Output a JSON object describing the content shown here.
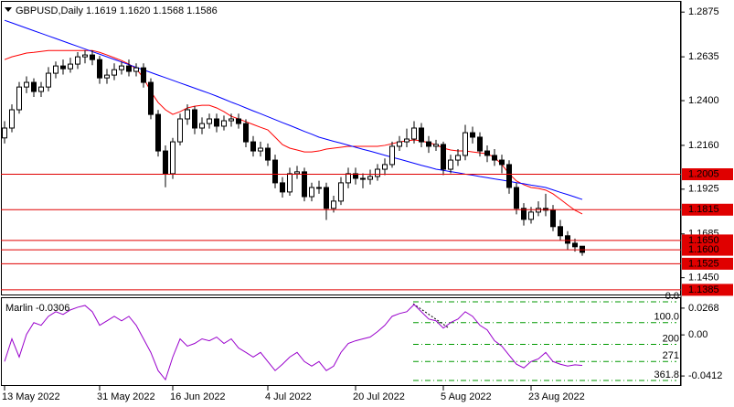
{
  "chart_data": [
    {
      "type": "candlestick",
      "title": "GBPUSD,Daily  1.1619 1.1620 1.1568 1.1586",
      "categories": [
        "13 May 2022",
        null,
        null,
        null,
        null,
        null,
        null,
        null,
        null,
        null,
        null,
        null,
        null,
        "31 May 2022",
        null,
        null,
        null,
        null,
        null,
        null,
        null,
        null,
        null,
        "16 Jun 2022",
        null,
        null,
        null,
        null,
        null,
        null,
        null,
        null,
        null,
        null,
        null,
        null,
        "4 Jul 2022",
        null,
        null,
        null,
        null,
        null,
        null,
        null,
        null,
        null,
        null,
        null,
        "20 Jul 2022",
        null,
        null,
        null,
        null,
        null,
        null,
        null,
        null,
        null,
        null,
        null,
        "5 Aug 2022",
        null,
        null,
        null,
        null,
        null,
        null,
        null,
        null,
        null,
        null,
        null,
        "23 Aug 2022",
        null,
        null,
        null,
        null,
        null,
        null,
        null
      ],
      "open": [
        1.22,
        1.2253,
        1.2351,
        1.2473,
        1.2498,
        1.2449,
        1.2473,
        1.2547,
        1.2586,
        1.2571,
        1.2596,
        1.2635,
        1.2645,
        1.262,
        1.2522,
        1.2537,
        1.2566,
        1.2586,
        1.2557,
        1.2576,
        1.2498,
        1.2326,
        1.213,
        1.2008,
        1.2179,
        1.2302,
        1.2351,
        1.2253,
        1.2277,
        1.2302,
        1.2263,
        1.2292,
        1.2302,
        1.2277,
        1.2179,
        1.213,
        1.2145,
        1.2081,
        1.1959,
        1.191,
        1.2008,
        1.2018,
        1.1885,
        1.1934,
        1.1934,
        1.1822,
        1.1861,
        1.1959,
        1.2008,
        1.1983,
        1.1978,
        1.1993,
        1.2032,
        1.2057,
        1.2155,
        1.2179,
        1.2194,
        1.2253,
        1.2179,
        1.2155,
        1.2165,
        1.2032,
        1.2081,
        1.2106,
        1.2228,
        1.2204,
        1.213,
        1.2106,
        1.2081,
        1.2057,
        1.1934,
        1.1822,
        1.1763,
        1.1802,
        1.1822,
        1.1812,
        1.1724,
        1.1675,
        1.1635,
        1.1619
      ],
      "high": [
        1.229,
        1.238,
        1.25,
        1.253,
        1.252,
        1.25,
        1.258,
        1.261,
        1.262,
        1.263,
        1.266,
        1.267,
        1.267,
        1.264,
        1.257,
        1.26,
        1.261,
        1.262,
        1.26,
        1.26,
        1.252,
        1.235,
        1.216,
        1.22,
        1.233,
        1.238,
        1.237,
        1.231,
        1.233,
        1.233,
        1.232,
        1.233,
        1.233,
        1.23,
        1.221,
        1.218,
        1.217,
        1.211,
        1.199,
        1.204,
        1.205,
        1.204,
        1.196,
        1.197,
        1.196,
        1.189,
        1.199,
        1.204,
        1.204,
        1.201,
        1.203,
        1.206,
        1.209,
        1.218,
        1.221,
        1.225,
        1.229,
        1.228,
        1.221,
        1.219,
        1.218,
        1.211,
        1.214,
        1.227,
        1.226,
        1.223,
        1.216,
        1.214,
        1.211,
        1.208,
        1.196,
        1.185,
        1.183,
        1.186,
        1.19,
        1.184,
        1.176,
        1.17,
        1.166,
        1.162
      ],
      "low": [
        1.217,
        1.223,
        1.233,
        1.244,
        1.242,
        1.242,
        1.245,
        1.252,
        1.254,
        1.255,
        1.257,
        1.26,
        1.259,
        1.249,
        1.249,
        1.251,
        1.254,
        1.253,
        1.253,
        1.247,
        1.23,
        1.21,
        1.1935,
        1.198,
        1.216,
        1.227,
        1.222,
        1.222,
        1.225,
        1.223,
        1.224,
        1.226,
        1.225,
        1.215,
        1.21,
        1.21,
        1.205,
        1.193,
        1.188,
        1.189,
        1.198,
        1.186,
        1.186,
        1.19,
        1.176,
        1.18,
        1.184,
        1.193,
        1.195,
        1.193,
        1.195,
        1.197,
        1.2,
        1.204,
        1.213,
        1.215,
        1.217,
        1.215,
        1.212,
        1.213,
        1.2,
        1.201,
        1.205,
        1.208,
        1.217,
        1.21,
        1.207,
        1.205,
        1.201,
        1.19,
        1.179,
        1.173,
        1.174,
        1.178,
        1.178,
        1.17,
        1.165,
        1.16,
        1.159,
        1.1568
      ],
      "close": [
        1.2253,
        1.2351,
        1.2473,
        1.2498,
        1.2449,
        1.2473,
        1.2547,
        1.2586,
        1.2571,
        1.2596,
        1.2635,
        1.2645,
        1.262,
        1.2522,
        1.2537,
        1.2566,
        1.2586,
        1.2557,
        1.2576,
        1.2498,
        1.2326,
        1.213,
        1.2008,
        1.2179,
        1.2302,
        1.2351,
        1.2253,
        1.2277,
        1.2302,
        1.2263,
        1.2292,
        1.2302,
        1.2277,
        1.2179,
        1.213,
        1.2145,
        1.2081,
        1.1959,
        1.191,
        1.2008,
        1.2018,
        1.1885,
        1.1934,
        1.1934,
        1.1822,
        1.1861,
        1.1959,
        1.2008,
        1.1983,
        1.1978,
        1.1993,
        1.2032,
        1.2057,
        1.2155,
        1.2179,
        1.2194,
        1.2253,
        1.2179,
        1.2155,
        1.2165,
        1.2032,
        1.2081,
        1.2106,
        1.2228,
        1.2204,
        1.213,
        1.2106,
        1.2081,
        1.2057,
        1.1934,
        1.1822,
        1.1763,
        1.1802,
        1.1822,
        1.1812,
        1.1724,
        1.1675,
        1.1635,
        1.1616,
        1.1586
      ],
      "lines": [
        {
          "color": "#ff0000",
          "values": [
            1.262,
            1.2635,
            1.2645,
            1.2655,
            1.2659,
            1.2664,
            1.2669,
            1.2669,
            1.2669,
            1.2669,
            1.2669,
            1.2669,
            1.2669,
            1.2659,
            1.2645,
            1.263,
            1.2615,
            1.2596,
            1.2571,
            1.2522,
            1.2449,
            1.239,
            1.2351,
            1.2326,
            1.2341,
            1.2361,
            1.237,
            1.2375,
            1.2375,
            1.2361,
            1.2341,
            1.2316,
            1.2302,
            1.2287,
            1.2272,
            1.2257,
            1.2243,
            1.2204,
            1.2164,
            1.2145,
            1.2135,
            1.2125,
            1.2125,
            1.213,
            1.214,
            1.2145,
            1.215,
            1.2155,
            1.2155,
            1.2155,
            1.2155,
            1.2155,
            1.216,
            1.2169,
            1.2179,
            1.2184,
            1.2189,
            1.2184,
            1.2174,
            1.2164,
            1.2145,
            1.2135,
            1.213,
            1.213,
            1.2125,
            1.212,
            1.2115,
            1.2096,
            1.2057,
            1.2008,
            1.1969,
            1.1949,
            1.1934,
            1.1929,
            1.192,
            1.19,
            1.1871,
            1.1841,
            1.1812,
            1.1792
          ]
        },
        {
          "color": "#0000ff",
          "values": [
            1.2831,
            1.2817,
            1.2803,
            1.2789,
            1.2775,
            1.2761,
            1.2747,
            1.2733,
            1.2719,
            1.2705,
            1.2691,
            1.2677,
            1.2663,
            1.2649,
            1.2635,
            1.2621,
            1.2607,
            1.2593,
            1.2579,
            1.2565,
            1.2551,
            1.2537,
            1.2523,
            1.2509,
            1.2495,
            1.2481,
            1.2467,
            1.2453,
            1.2439,
            1.2424,
            1.2408,
            1.2392,
            1.2377,
            1.2361,
            1.2345,
            1.233,
            1.2314,
            1.2298,
            1.2282,
            1.2267,
            1.2251,
            1.2235,
            1.222,
            1.2204,
            1.2193,
            1.2182,
            1.2172,
            1.2161,
            1.215,
            1.2139,
            1.2129,
            1.2118,
            1.2107,
            1.2096,
            1.2086,
            1.2075,
            1.2064,
            1.2053,
            1.2043,
            1.2032,
            1.2026,
            1.2019,
            1.2013,
            1.2006,
            1.2,
            1.1993,
            1.1987,
            1.198,
            1.1974,
            1.1967,
            1.196,
            1.1954,
            1.1947,
            1.1941,
            1.1934,
            1.1921,
            1.1908,
            1.1896,
            1.1883,
            1.187
          ]
        }
      ],
      "levels": [
        1.2005,
        1.1815,
        {
          "value": 1.165,
          "label": "1.1650"
        },
        {
          "value": 1.16,
          "label": "1.1600"
        },
        1.1525,
        1.1385
      ],
      "level_color": "#e00000",
      "bull_color": "#ffffff",
      "bear_color": "#000000",
      "ylim": [
        1.136,
        1.293
      ],
      "yticks": [
        1.2875,
        1.2635,
        {
          "value": 1.24,
          "label": "1.2400"
        },
        {
          "value": 1.216,
          "label": "1.2160"
        },
        1.1925,
        1.1685,
        {
          "value": 1.145,
          "label": "1.1450"
        }
      ],
      "grid": false
    },
    {
      "type": "line",
      "title": "Marlin -0.0306",
      "color": "#9900cc",
      "values": [
        -0.0267,
        -0.004,
        -0.0222,
        0.0005,
        0.0123,
        0.0096,
        0.0186,
        0.0232,
        0.0205,
        0.025,
        0.0277,
        0.0295,
        0.0232,
        0.0096,
        0.0141,
        0.0186,
        0.0141,
        0.0186,
        0.0096,
        -0.004,
        -0.0176,
        -0.0358,
        -0.0449,
        -0.0222,
        -0.004,
        -0.0113,
        -0.0086,
        -0.004,
        -0.0059,
        -0.0022,
        -0.0086,
        -0.004,
        -0.0131,
        -0.0176,
        -0.0222,
        -0.0176,
        -0.0267,
        -0.0358,
        -0.0294,
        -0.0222,
        -0.0176,
        -0.0267,
        -0.0313,
        -0.0267,
        -0.0358,
        -0.0313,
        -0.0176,
        -0.0086,
        -0.0059,
        -0.004,
        -0.0022,
        0.0032,
        0.0096,
        0.0186,
        0.0214,
        0.0232,
        0.0304,
        0.0232,
        0.0159,
        0.0141,
        0.0068,
        0.0123,
        0.0159,
        0.0232,
        0.0186,
        0.0096,
        0.005,
        -0.0059,
        -0.0113,
        -0.0204,
        -0.0294,
        -0.0331,
        -0.0267,
        -0.024,
        -0.0176,
        -0.0267,
        -0.0294,
        -0.0313,
        -0.03,
        -0.0306
      ],
      "fib_levels": [
        {
          "value": 0.0331,
          "label": "0.0"
        },
        {
          "value": 0.0123,
          "label": "100.0"
        },
        {
          "value": -0.0095,
          "label": "200"
        },
        {
          "value": -0.0267,
          "label": "271"
        },
        {
          "value": -0.0457,
          "label": "361.8"
        }
      ],
      "fib_color": "#009900",
      "ylim": [
        -0.0512,
        0.0368
      ],
      "yticks": [
        0.0268,
        {
          "value": 0,
          "label": "0.00"
        },
        -0.0412
      ],
      "grid": false
    }
  ]
}
